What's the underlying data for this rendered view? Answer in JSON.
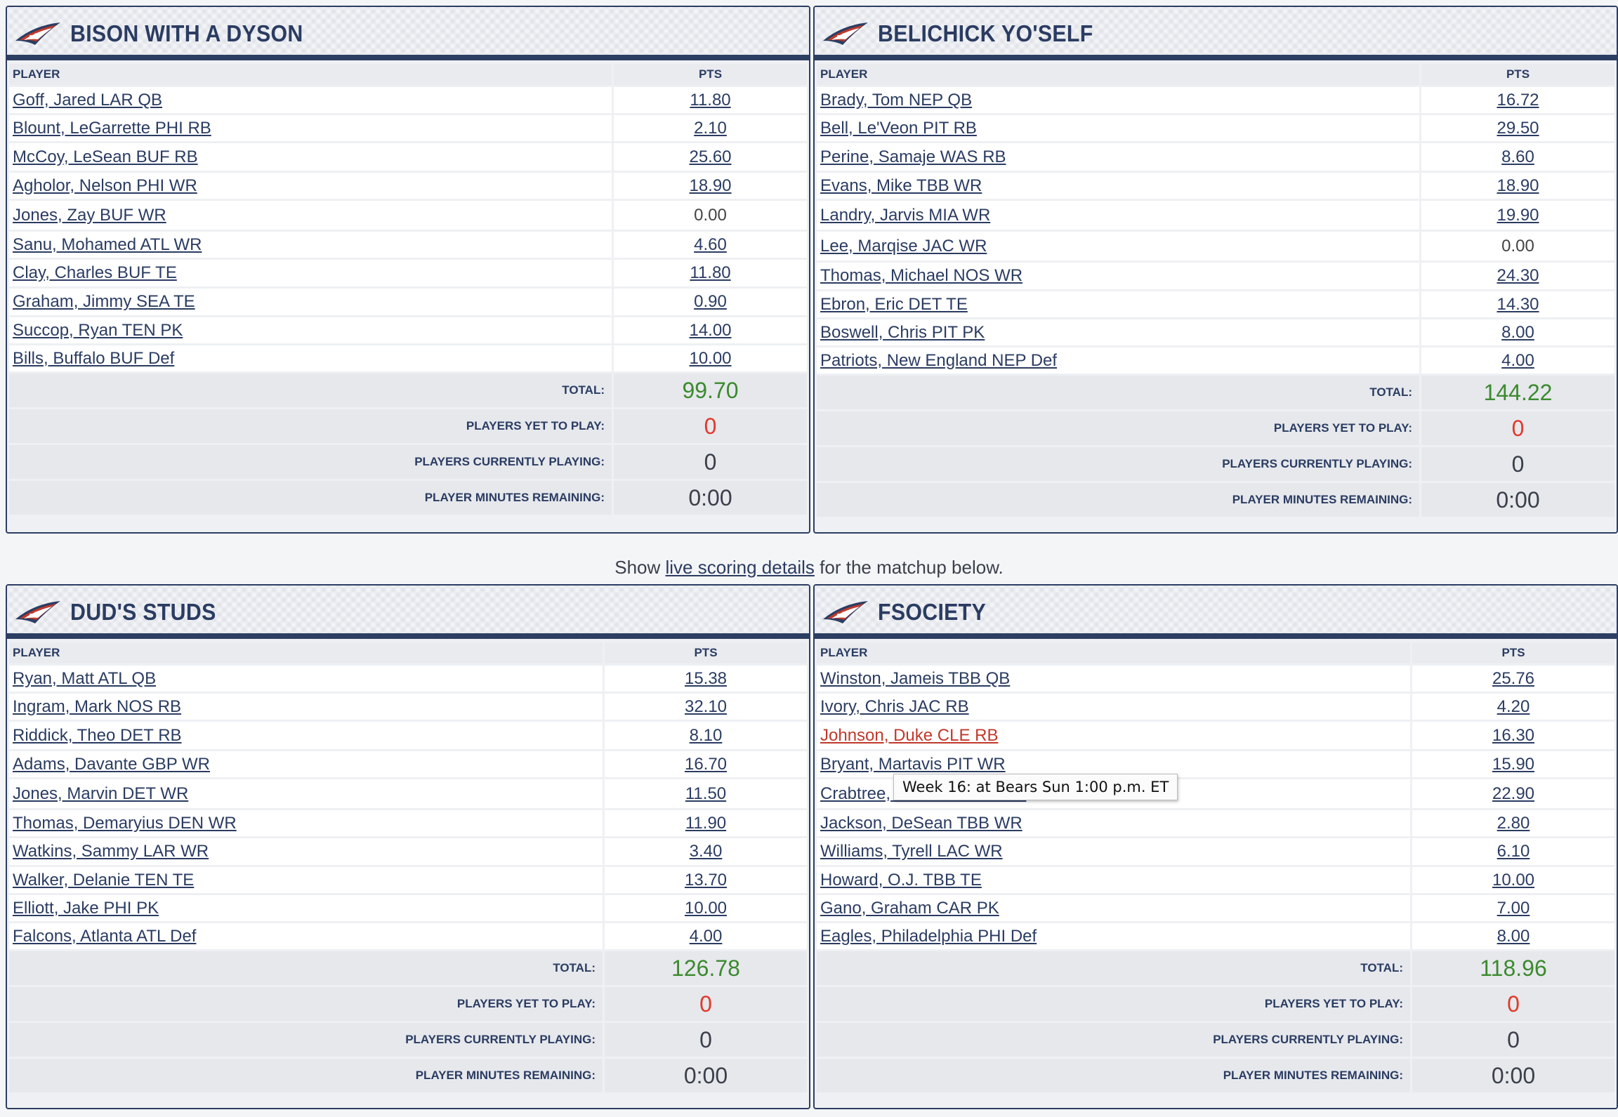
{
  "labels": {
    "player_header": "PLAYER",
    "pts_header": "PTS",
    "total": "TOTAL:",
    "yet_to_play": "PLAYERS YET TO PLAY:",
    "currently_playing": "PLAYERS CURRENTLY PLAYING:",
    "minutes_remaining": "PLAYER MINUTES REMAINING:"
  },
  "notice": {
    "prefix": "Show ",
    "link": "live scoring details",
    "suffix": " for the matchup below."
  },
  "tooltip": "Week 16: at Bears Sun 1:00 p.m. ET",
  "colors": {
    "navy": "#2d3e63",
    "flag_red": "#c0392b",
    "total_green": "#3b8a2e",
    "yet_red": "#e0392b"
  },
  "teams": [
    {
      "name": "BISON WITH A DYSON",
      "players": [
        {
          "name": "Goff, Jared LAR QB",
          "pts": "11.80"
        },
        {
          "name": "Blount, LeGarrette PHI RB",
          "pts": "2.10"
        },
        {
          "name": "McCoy, LeSean BUF RB",
          "pts": "25.60"
        },
        {
          "name": "Agholor, Nelson PHI WR",
          "pts": "18.90"
        },
        {
          "name": "Jones, Zay BUF WR",
          "pts": "0.00"
        },
        {
          "name": "Sanu, Mohamed ATL WR",
          "pts": "4.60"
        },
        {
          "name": "Clay, Charles BUF TE",
          "pts": "11.80"
        },
        {
          "name": "Graham, Jimmy SEA TE",
          "pts": "0.90"
        },
        {
          "name": "Succop, Ryan TEN PK",
          "pts": "14.00"
        },
        {
          "name": "Bills, Buffalo BUF Def",
          "pts": "10.00"
        }
      ],
      "total": "99.70",
      "yet_to_play": "0",
      "currently_playing": "0",
      "minutes_remaining": "0:00"
    },
    {
      "name": "BELICHICK YO'SELF",
      "players": [
        {
          "name": "Brady, Tom NEP QB",
          "pts": "16.72"
        },
        {
          "name": "Bell, Le'Veon PIT RB",
          "pts": "29.50"
        },
        {
          "name": "Perine, Samaje WAS RB",
          "pts": "8.60"
        },
        {
          "name": "Evans, Mike TBB WR",
          "pts": "18.90"
        },
        {
          "name": "Landry, Jarvis MIA WR",
          "pts": "19.90"
        },
        {
          "name": "Lee, Marqise JAC WR",
          "pts": "0.00"
        },
        {
          "name": "Thomas, Michael NOS WR",
          "pts": "24.30"
        },
        {
          "name": "Ebron, Eric DET TE",
          "pts": "14.30"
        },
        {
          "name": "Boswell, Chris PIT PK",
          "pts": "8.00"
        },
        {
          "name": "Patriots, New England NEP Def",
          "pts": "4.00"
        }
      ],
      "total": "144.22",
      "yet_to_play": "0",
      "currently_playing": "0",
      "minutes_remaining": "0:00"
    },
    {
      "name": "DUD'S STUDS",
      "players": [
        {
          "name": "Ryan, Matt ATL QB",
          "pts": "15.38"
        },
        {
          "name": "Ingram, Mark NOS RB",
          "pts": "32.10"
        },
        {
          "name": "Riddick, Theo DET RB",
          "pts": "8.10"
        },
        {
          "name": "Adams, Davante GBP WR",
          "pts": "16.70"
        },
        {
          "name": "Jones, Marvin DET WR",
          "pts": "11.50"
        },
        {
          "name": "Thomas, Demaryius DEN WR",
          "pts": "11.90"
        },
        {
          "name": "Watkins, Sammy LAR WR",
          "pts": "3.40"
        },
        {
          "name": "Walker, Delanie TEN TE",
          "pts": "13.70"
        },
        {
          "name": "Elliott, Jake PHI PK",
          "pts": "10.00"
        },
        {
          "name": "Falcons, Atlanta ATL Def",
          "pts": "4.00"
        }
      ],
      "total": "126.78",
      "yet_to_play": "0",
      "currently_playing": "0",
      "minutes_remaining": "0:00"
    },
    {
      "name": "FSOCIETY",
      "players": [
        {
          "name": "Winston, Jameis TBB QB",
          "pts": "25.76"
        },
        {
          "name": "Ivory, Chris JAC RB",
          "pts": "4.20"
        },
        {
          "name": "Johnson, Duke CLE RB",
          "pts": "16.30",
          "flag": true
        },
        {
          "name": "Bryant, Martavis PIT WR",
          "pts": "15.90"
        },
        {
          "name": "Crabtree, Michael OAK WR",
          "pts": "22.90"
        },
        {
          "name": "Jackson, DeSean TBB WR",
          "pts": "2.80"
        },
        {
          "name": "Williams, Tyrell LAC WR",
          "pts": "6.10"
        },
        {
          "name": "Howard, O.J. TBB TE",
          "pts": "10.00"
        },
        {
          "name": "Gano, Graham CAR PK",
          "pts": "7.00"
        },
        {
          "name": "Eagles, Philadelphia PHI Def",
          "pts": "8.00"
        }
      ],
      "total": "118.96",
      "yet_to_play": "0",
      "currently_playing": "0",
      "minutes_remaining": "0:00"
    }
  ]
}
